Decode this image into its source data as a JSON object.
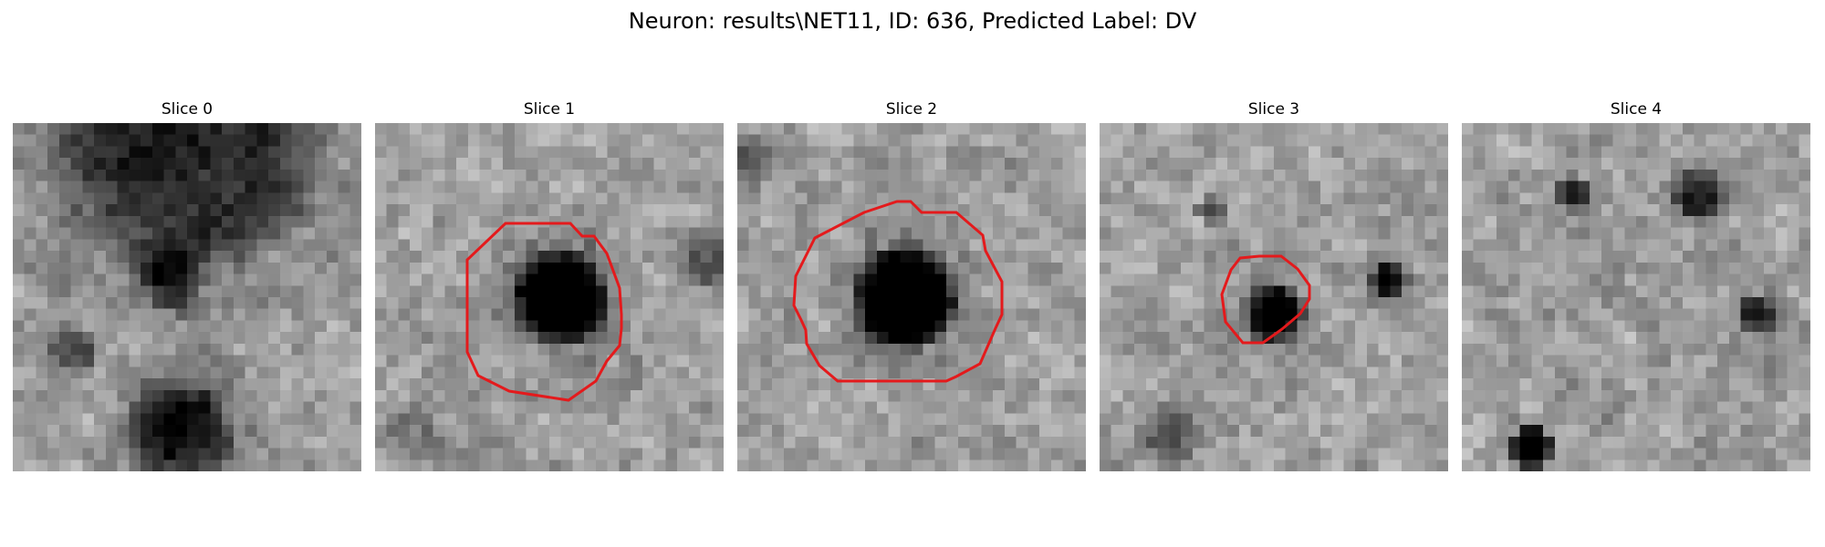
{
  "figure": {
    "title": "Neuron: results\\NET11, ID: 636, Predicted Label: DV"
  },
  "slices": [
    {
      "label": "Slice 0",
      "has_contour": false,
      "dark_blobs": [
        [
          0.45,
          0.45,
          0.1,
          0.45
        ],
        [
          0.48,
          0.88,
          0.18,
          0.55
        ],
        [
          0.5,
          0.05,
          0.45,
          0.5
        ],
        [
          0.18,
          0.65,
          0.08,
          0.35
        ]
      ]
    },
    {
      "label": "Slice 1",
      "has_contour": true,
      "dark_blobs": [
        [
          0.53,
          0.5,
          0.16,
          0.9
        ],
        [
          0.95,
          0.4,
          0.08,
          0.3
        ],
        [
          0.1,
          0.9,
          0.1,
          0.2
        ]
      ]
    },
    {
      "label": "Slice 2",
      "has_contour": true,
      "dark_blobs": [
        [
          0.48,
          0.5,
          0.17,
          0.9
        ],
        [
          0.05,
          0.1,
          0.08,
          0.3
        ]
      ]
    },
    {
      "label": "Slice 3",
      "has_contour": true,
      "dark_blobs": [
        [
          0.5,
          0.55,
          0.1,
          0.75
        ],
        [
          0.83,
          0.45,
          0.06,
          0.6
        ],
        [
          0.32,
          0.25,
          0.05,
          0.4
        ],
        [
          0.2,
          0.9,
          0.1,
          0.3
        ]
      ]
    },
    {
      "label": "Slice 4",
      "has_contour": false,
      "dark_blobs": [
        [
          0.2,
          0.93,
          0.07,
          0.9
        ],
        [
          0.68,
          0.2,
          0.08,
          0.55
        ],
        [
          0.32,
          0.2,
          0.06,
          0.5
        ],
        [
          0.85,
          0.55,
          0.07,
          0.5
        ]
      ]
    }
  ],
  "contour_color": "#e41a1c"
}
